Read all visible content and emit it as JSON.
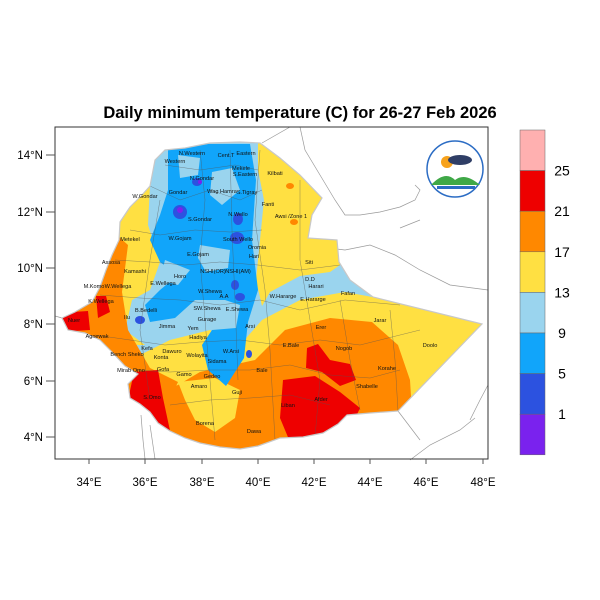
{
  "title": "Daily minimum temperature (C) for 26-27 Feb 2026",
  "axes": {
    "x_ticks": [
      "34°E",
      "36°E",
      "38°E",
      "40°E",
      "42°E",
      "44°E",
      "46°E",
      "48°E"
    ],
    "y_ticks": [
      "14°N",
      "12°N",
      "10°N",
      "8°N",
      "6°N",
      "4°N"
    ]
  },
  "legend": {
    "colors": [
      "#ffb0b0",
      "#ee0000",
      "#ff8800",
      "#ffe042",
      "#9ad4ee",
      "#11a5fa",
      "#2c52e0",
      "#7a22ee"
    ],
    "labels": [
      "25",
      "21",
      "17",
      "13",
      "9",
      "5",
      "1"
    ]
  },
  "map": {
    "region_labels": [
      "Western",
      "N.Western",
      "Cent.T",
      "Eastern",
      "Mekele",
      "S.Eastern",
      "Kilbati",
      "N.Gondar",
      "W.Gondar",
      "Gondar",
      "Wag Hamra",
      "S.Tigray",
      "Fanti",
      "Awsi /Zone 1",
      "S.Gondar",
      "N.Wello",
      "Metekel",
      "W.Gojam",
      "South Wello",
      "Oromia",
      "Hari",
      "Assosa",
      "Kamashi",
      "E.Gojam",
      "Siti",
      "D.D",
      "Harari",
      "Fafan",
      "Horo",
      "NSHI(OR)",
      "NSHI(AM)",
      "A.A",
      "M.Komo",
      "W.Wellega",
      "E.Wellega",
      "W.Shewa",
      "K.Wellega",
      "Nuer",
      "B.Bedelli",
      "SW.Shewa",
      "E.Shewa",
      "W.Hararge",
      "E.Hararge",
      "Jarar",
      "Ilu",
      "Gurage",
      "Agnewak",
      "Jimma",
      "Yem",
      "Arsi",
      "Erer",
      "Hadiya",
      "Kefa",
      "Konta",
      "Dawuro",
      "Wolayita",
      "Bench Sheko",
      "Mirab Omo",
      "W.Arsi",
      "E.Bale",
      "Nogob",
      "Doolo",
      "Sidama",
      "Gofa",
      "Gamo",
      "Gedeo",
      "Amaro",
      "Guji",
      "Bale",
      "Korahe",
      "S.Omo",
      "Shabelle",
      "Liban",
      "Afder",
      "Borena",
      "Dawa"
    ]
  }
}
